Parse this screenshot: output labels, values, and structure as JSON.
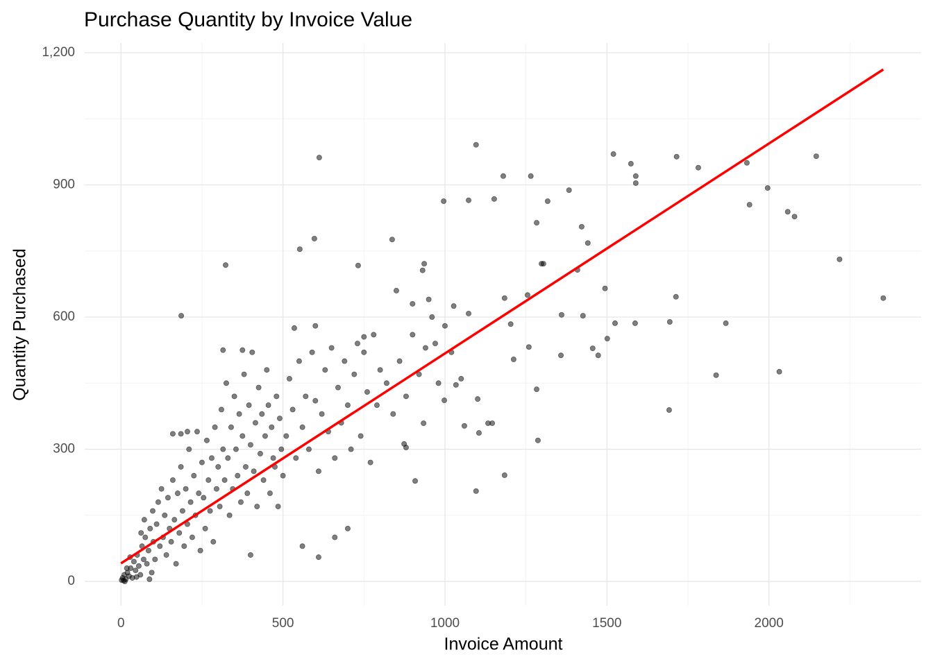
{
  "chart_data": {
    "type": "scatter",
    "title": "Purchase Quantity by Invoice Value",
    "x_label": "Invoice Amount",
    "y_label": "Quantity Purchased",
    "xlim": [
      -112,
      2470
    ],
    "ylim": [
      -55,
      1222
    ],
    "xticks": [
      0,
      500,
      1000,
      1500,
      2000
    ],
    "yticks": [
      0,
      300,
      600,
      900,
      {
        "value": 1200,
        "label": "1,200"
      }
    ],
    "x_minor_ticks": [
      250,
      750,
      1250,
      1750,
      2250
    ],
    "y_minor_ticks": [
      150,
      450,
      750,
      1050
    ],
    "grid": true,
    "color": "#000000",
    "point_opacity": 0.5,
    "x": [
      2,
      5,
      8,
      10,
      15,
      20,
      25,
      30,
      35,
      40,
      45,
      50,
      55,
      60,
      65,
      70,
      75,
      80,
      85,
      90,
      95,
      100,
      12,
      18,
      28,
      48,
      62,
      72,
      88,
      98,
      105,
      110,
      115,
      120,
      125,
      130,
      135,
      140,
      145,
      150,
      155,
      160,
      165,
      170,
      175,
      180,
      185,
      190,
      195,
      200,
      205,
      210,
      215,
      220,
      225,
      230,
      235,
      240,
      245,
      250,
      255,
      260,
      265,
      270,
      275,
      280,
      285,
      290,
      295,
      300,
      185,
      160,
      205,
      305,
      310,
      315,
      320,
      325,
      330,
      335,
      340,
      345,
      350,
      355,
      360,
      365,
      370,
      375,
      380,
      385,
      390,
      395,
      400,
      405,
      410,
      415,
      420,
      425,
      430,
      435,
      440,
      445,
      450,
      455,
      460,
      465,
      470,
      475,
      480,
      485,
      490,
      495,
      500,
      400,
      375,
      315,
      510,
      520,
      530,
      540,
      550,
      560,
      570,
      580,
      590,
      600,
      610,
      620,
      630,
      640,
      650,
      660,
      670,
      680,
      690,
      700,
      710,
      720,
      730,
      740,
      750,
      760,
      770,
      780,
      790,
      800,
      600,
      610,
      560,
      660,
      700,
      535,
      750,
      820,
      840,
      860,
      880,
      900,
      920,
      940,
      960,
      980,
      1000,
      850,
      900,
      950,
      1020,
      1050,
      1520,
      1574,
      1589,
      1589,
      1715,
      1782,
      1932,
      1996,
      2146,
      1940,
      2058,
      2079,
      2218,
      2353,
      2032,
      1837,
      1692,
      1867,
      1713,
      1694,
      1587,
      1525,
      1501,
      1494,
      1473,
      1456,
      1180,
      1265,
      1096,
      612,
      323,
      186,
      837,
      552,
      597,
      996,
      1073,
      1152,
      1317,
      1383,
      1283,
      1298,
      1304,
      1096,
      1184,
      1287,
      1283,
      931,
      732,
      936,
      1184,
      1259,
      1358,
      1426,
      1422,
      1441,
      1360,
      1409,
      1255,
      1203,
      1212,
      1133,
      1105,
      1146,
      1060,
      998,
      1101,
      934,
      874,
      908,
      880,
      970,
      1034,
      1027,
      1073
    ],
    "y": [
      3,
      8,
      2,
      15,
      5,
      20,
      12,
      30,
      8,
      45,
      25,
      60,
      35,
      15,
      80,
      50,
      100,
      40,
      70,
      120,
      20,
      90,
      0,
      30,
      55,
      10,
      110,
      140,
      5,
      160,
      50,
      130,
      180,
      80,
      210,
      100,
      150,
      60,
      190,
      120,
      90,
      230,
      140,
      40,
      200,
      110,
      260,
      160,
      80,
      210,
      130,
      300,
      180,
      100,
      240,
      150,
      340,
      200,
      70,
      270,
      190,
      120,
      320,
      230,
      160,
      280,
      90,
      350,
      210,
      260,
      335,
      335,
      340,
      170,
      390,
      300,
      230,
      450,
      280,
      150,
      350,
      210,
      420,
      300,
      240,
      380,
      180,
      330,
      470,
      260,
      200,
      400,
      310,
      520,
      250,
      360,
      170,
      440,
      290,
      380,
      230,
      330,
      480,
      400,
      200,
      350,
      280,
      260,
      420,
      170,
      370,
      300,
      240,
      60,
      525,
      525,
      330,
      460,
      390,
      280,
      500,
      350,
      420,
      300,
      520,
      410,
      250,
      380,
      480,
      340,
      530,
      280,
      440,
      360,
      500,
      400,
      300,
      470,
      540,
      330,
      520,
      430,
      270,
      560,
      400,
      480,
      580,
      55,
      80,
      100,
      120,
      575,
      555,
      450,
      380,
      500,
      420,
      560,
      470,
      530,
      600,
      450,
      580,
      660,
      630,
      640,
      520,
      460,
      970,
      948,
      920,
      904,
      964,
      939,
      950,
      893,
      965,
      855,
      839,
      828,
      731,
      643,
      476,
      468,
      389,
      586,
      646,
      589,
      586,
      586,
      551,
      665,
      513,
      529,
      920,
      920,
      991,
      962,
      718,
      603,
      776,
      754,
      778,
      863,
      865,
      868,
      863,
      888,
      814,
      721,
      721,
      205,
      241,
      320,
      436,
      706,
      717,
      721,
      643,
      532,
      513,
      603,
      805,
      768,
      605,
      707,
      650,
      584,
      504,
      359,
      337,
      359,
      353,
      411,
      414,
      359,
      312,
      228,
      304,
      540,
      446,
      625,
      608
    ],
    "trend_line": {
      "x": [
        0,
        2353
      ],
      "y": [
        41,
        1162
      ],
      "color": "#FF0000"
    }
  }
}
